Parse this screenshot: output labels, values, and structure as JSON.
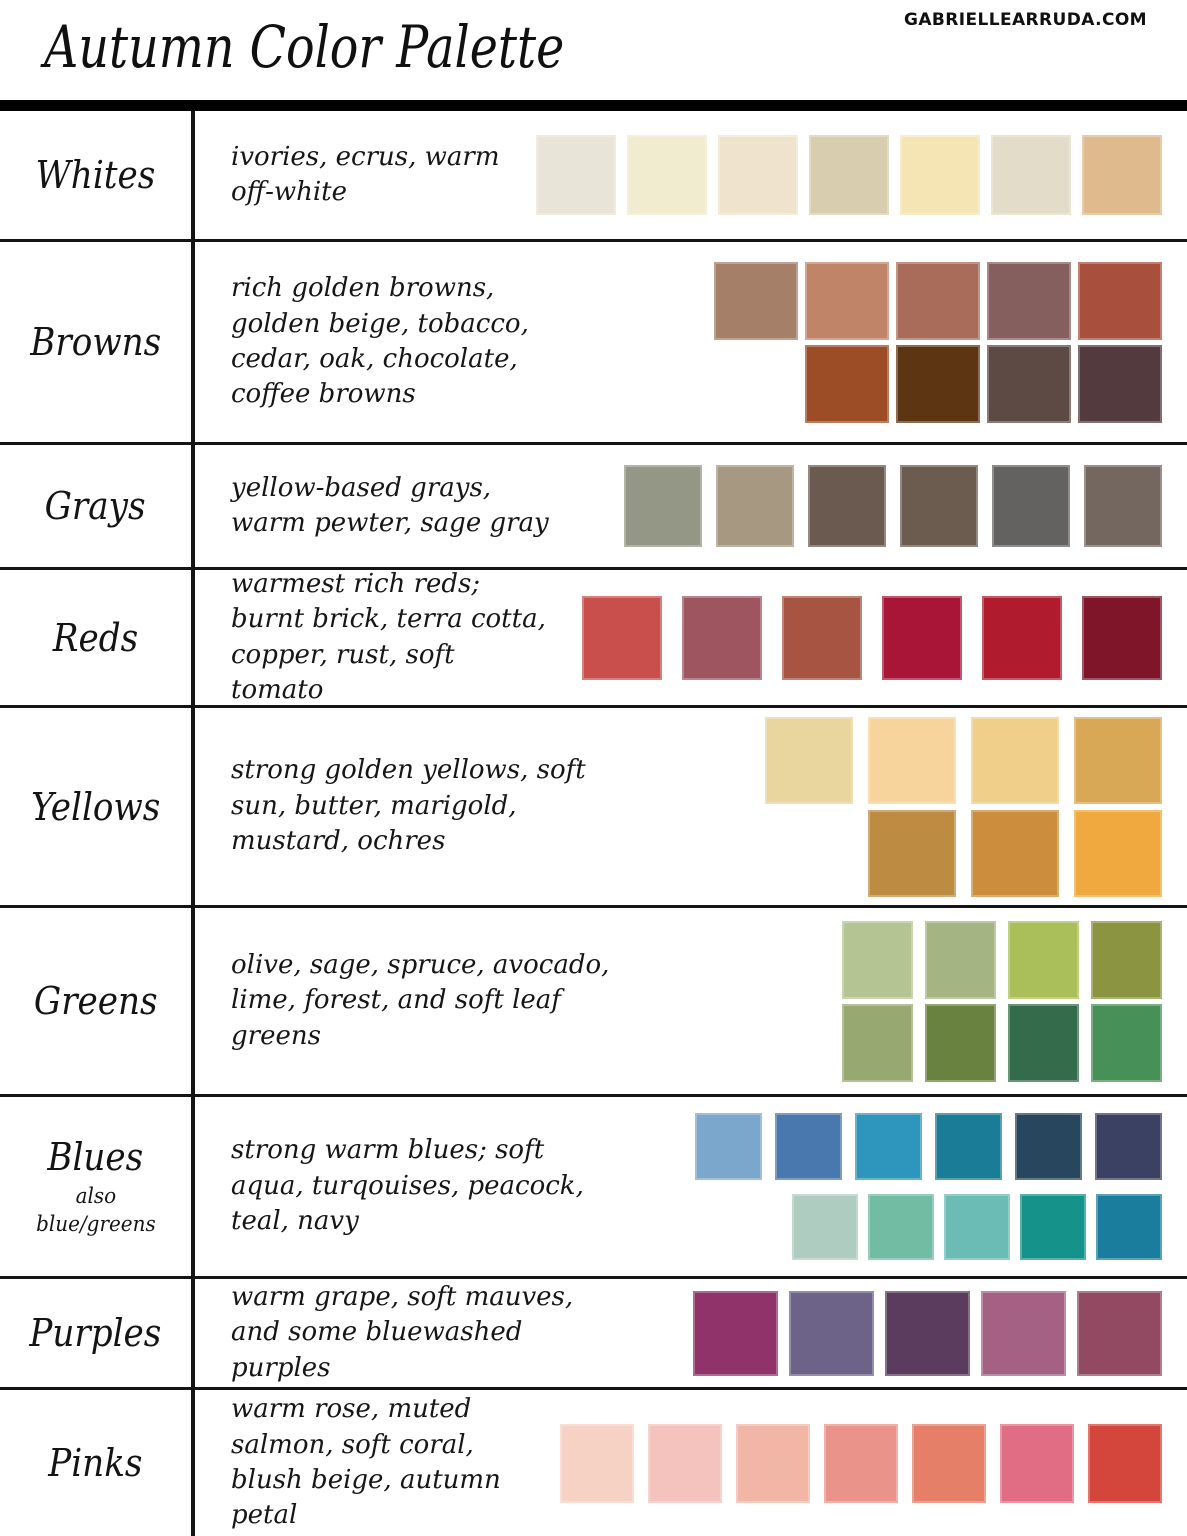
{
  "header": {
    "site": "GABRIELLEARRUDA.COM",
    "title": "Autumn Color Palette"
  },
  "rows": [
    {
      "id": "whites",
      "label": "Whites",
      "description": "ivories, ecrus, warm off-white",
      "swatches": [
        [
          "#E8E4D7",
          "#F1EBD0",
          "#EFE3CD",
          "#D9CDAF",
          "#F5E5B5",
          "#E2DCC8",
          "#DFBA8C"
        ]
      ]
    },
    {
      "id": "browns",
      "label": "Browns",
      "description": "rich golden browns, golden beige, tobacco, cedar, oak, chocolate, coffee browns",
      "swatches": [
        [
          "#A67F68",
          "#C08468",
          "#A96C5B",
          "#855F5D",
          "#A94F3E"
        ],
        [
          "#9D4D25",
          "#5E3512",
          "#5D4A44",
          "#533A3F"
        ]
      ]
    },
    {
      "id": "grays",
      "label": "Grays",
      "description": "yellow-based grays, warm pewter, sage gray",
      "swatches": [
        [
          "#949786",
          "#A79881",
          "#6B5A50",
          "#6C5B4F",
          "#636260",
          "#746760"
        ]
      ]
    },
    {
      "id": "reds",
      "label": "Reds",
      "description": "warmest rich reds; burnt brick, terra cotta, copper, rust, soft tomato",
      "swatches": [
        [
          "#C94F4D",
          "#9E5560",
          "#A85443",
          "#A91536",
          "#B01B2D",
          "#7E1529"
        ]
      ]
    },
    {
      "id": "yellows",
      "label": "Yellows",
      "description": "strong golden yellows, soft sun, butter, marigold, mustard, ochres",
      "swatches": [
        [
          "#E9D59E",
          "#F6D49C",
          "#EFCF8A",
          "#D9A857"
        ],
        [
          "#BE8B43",
          "#CC8E3C",
          "#EFA93F"
        ]
      ]
    },
    {
      "id": "greens",
      "label": "Greens",
      "description": "olive, sage, spruce, avocado, lime, forest, and soft leaf greens",
      "swatches": [
        [
          "#B5C493",
          "#A4B583",
          "#AABE5A",
          "#8B9440"
        ],
        [
          "#97A871",
          "#6A8240",
          "#336B4B",
          "#479158"
        ]
      ]
    },
    {
      "id": "blues",
      "label": "Blues",
      "sublabel": [
        "also",
        "blue/greens"
      ],
      "description": "strong warm blues; soft aqua, turqouises, peacock, teal, navy",
      "swatches": [
        [
          "#7BA7CC",
          "#4878AD",
          "#2E96BC",
          "#1A7C96",
          "#28475F",
          "#3A4163"
        ],
        [
          "#AECCC0",
          "#72BCA4",
          "#6BBCB4",
          "#15938A",
          "#1B7D9E"
        ]
      ]
    },
    {
      "id": "purples",
      "label": "Purples",
      "description": "warm grape, soft mauves, and some bluewashed purples",
      "swatches": [
        [
          "#90336B",
          "#6D6288",
          "#5B3C5E",
          "#A56184",
          "#924A63"
        ]
      ]
    },
    {
      "id": "pinks",
      "label": "Pinks",
      "description": "warm rose, muted salmon, soft coral, blush beige, autumn petal",
      "swatches": [
        [
          "#F6D2C4",
          "#F4C3BD",
          "#F2B6A7",
          "#EA938B",
          "#E57F68",
          "#E06D84",
          "#D4453B"
        ]
      ]
    }
  ],
  "chart_data": {
    "type": "table",
    "title": "Autumn Color Palette",
    "source_label": "GABRIELLEARRUDA.COM",
    "categories": [
      "Whites",
      "Browns",
      "Grays",
      "Reds",
      "Yellows",
      "Greens",
      "Blues",
      "Purples",
      "Pinks"
    ],
    "category_notes": [
      "ivories, ecrus, warm off-white",
      "rich golden browns, golden beige, tobacco, cedar, oak, chocolate, coffee browns",
      "yellow-based grays, warm pewter, sage gray",
      "warmest rich reds; burnt brick, terra cotta, copper, rust, soft tomato",
      "strong golden yellows, soft sun, butter, marigold, mustard, ochres",
      "olive, sage, spruce, avocado, lime, forest, and soft leaf greens",
      "strong warm blues; soft aqua, turqouises, peacock, teal, navy (also blue/greens)",
      "warm grape, soft mauves, and some bluewashed purples",
      "warm rose, muted salmon, soft coral, blush beige, autumn petal"
    ],
    "swatch_counts": [
      7,
      9,
      6,
      6,
      7,
      8,
      11,
      5,
      7
    ],
    "palette_hex": {
      "Whites": [
        "#E8E4D7",
        "#F1EBD0",
        "#EFE3CD",
        "#D9CDAF",
        "#F5E5B5",
        "#E2DCC8",
        "#DFBA8C"
      ],
      "Browns": [
        "#A67F68",
        "#C08468",
        "#A96C5B",
        "#855F5D",
        "#A94F3E",
        "#9D4D25",
        "#5E3512",
        "#5D4A44",
        "#533A3F"
      ],
      "Grays": [
        "#949786",
        "#A79881",
        "#6B5A50",
        "#6C5B4F",
        "#636260",
        "#746760"
      ],
      "Reds": [
        "#C94F4D",
        "#9E5560",
        "#A85443",
        "#A91536",
        "#B01B2D",
        "#7E1529"
      ],
      "Yellows": [
        "#E9D59E",
        "#F6D49C",
        "#EFCF8A",
        "#D9A857",
        "#BE8B43",
        "#CC8E3C",
        "#EFA93F"
      ],
      "Greens": [
        "#B5C493",
        "#A4B583",
        "#AABE5A",
        "#8B9440",
        "#97A871",
        "#6A8240",
        "#336B4B",
        "#479158"
      ],
      "Blues": [
        "#7BA7CC",
        "#4878AD",
        "#2E96BC",
        "#1A7C96",
        "#28475F",
        "#3A4163",
        "#AECCC0",
        "#72BCA4",
        "#6BBCB4",
        "#15938A",
        "#1B7D9E"
      ],
      "Purples": [
        "#90336B",
        "#6D6288",
        "#5B3C5E",
        "#A56184",
        "#924A63"
      ],
      "Pinks": [
        "#F6D2C4",
        "#F4C3BD",
        "#F2B6A7",
        "#EA938B",
        "#E57F68",
        "#E06D84",
        "#D4453B"
      ]
    },
    "legend_position": "none",
    "grid": "table-rules"
  }
}
